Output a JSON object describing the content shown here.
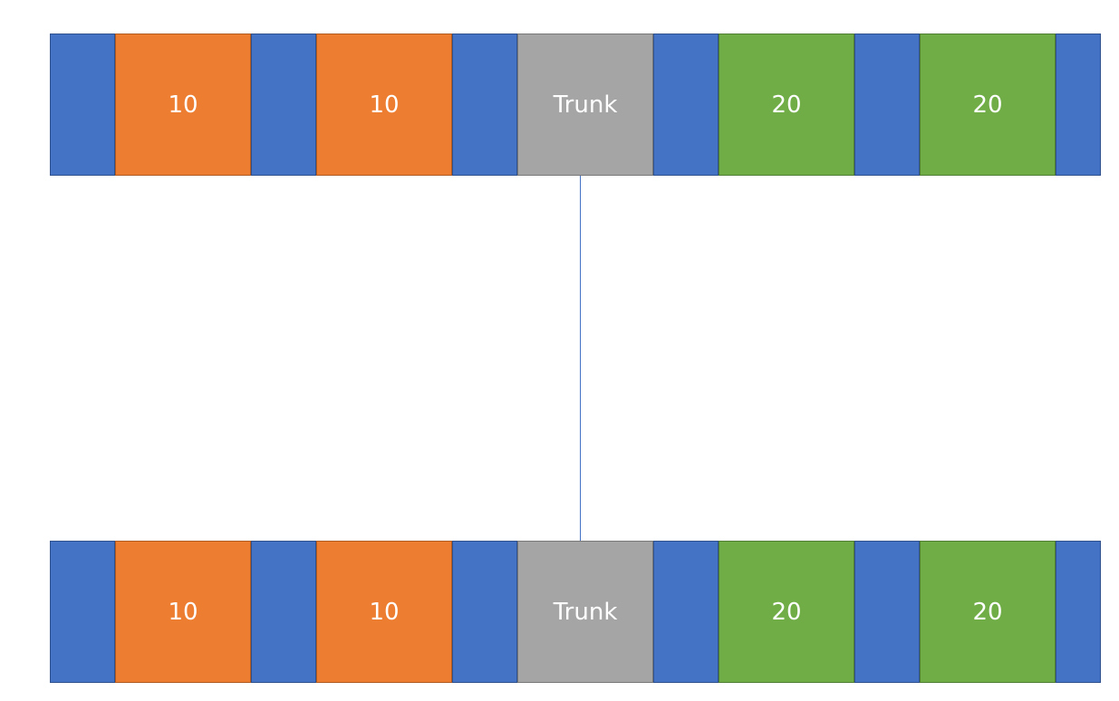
{
  "colors": {
    "separator": "#4472c4",
    "separator_border": "#2f528f",
    "vlan_10": "#ed7d31",
    "vlan_10_border": "#ae5a21",
    "trunk": "#a5a5a5",
    "trunk_border": "#787878",
    "vlan_20": "#70ad47",
    "vlan_20_border": "#507e32",
    "link": "#4472c4"
  },
  "switches": [
    {
      "ports": [
        {
          "label": "10",
          "kind": "vlan_10"
        },
        {
          "label": "10",
          "kind": "vlan_10"
        },
        {
          "label": "Trunk",
          "kind": "trunk"
        },
        {
          "label": "20",
          "kind": "vlan_20"
        },
        {
          "label": "20",
          "kind": "vlan_20"
        }
      ]
    },
    {
      "ports": [
        {
          "label": "10",
          "kind": "vlan_10"
        },
        {
          "label": "10",
          "kind": "vlan_10"
        },
        {
          "label": "Trunk",
          "kind": "trunk"
        },
        {
          "label": "20",
          "kind": "vlan_20"
        },
        {
          "label": "20",
          "kind": "vlan_20"
        }
      ]
    }
  ]
}
